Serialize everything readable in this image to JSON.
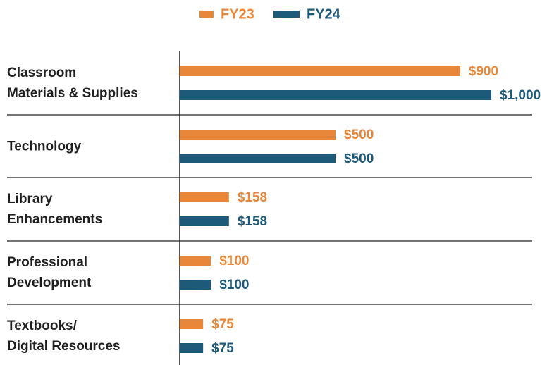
{
  "chart_data": {
    "type": "bar",
    "orientation": "horizontal",
    "categories": [
      "Classroom\nMaterials & Supplies",
      "Technology",
      "Library\nEnhancements",
      "Professional\nDevelopment",
      "Textbooks/\nDigital Resources"
    ],
    "series": [
      {
        "name": "FY23",
        "color": "#e8873a",
        "values": [
          900,
          500,
          158,
          100,
          75
        ],
        "value_labels": [
          "$900",
          "$500",
          "$158",
          "$100",
          "$75"
        ]
      },
      {
        "name": "FY24",
        "color": "#1d5a7a",
        "values": [
          1000,
          500,
          158,
          100,
          75
        ],
        "value_labels": [
          "$1,000",
          "$500",
          "$158",
          "$100",
          "$75"
        ]
      }
    ],
    "xlim": [
      0,
      1000
    ],
    "legend": "top"
  }
}
